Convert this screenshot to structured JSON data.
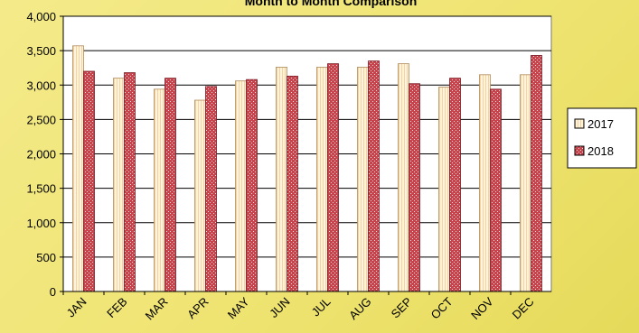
{
  "chart_data": {
    "type": "bar",
    "title": "Month to Month Comparison",
    "xlabel": "",
    "ylabel": "",
    "ylim": [
      0,
      4000
    ],
    "yticks": [
      "0",
      "500",
      "1,000",
      "1,500",
      "2,000",
      "2,500",
      "3,000",
      "3,500",
      "4,000"
    ],
    "yticks_values": [
      0,
      500,
      1000,
      1500,
      2000,
      2500,
      3000,
      3500,
      4000
    ],
    "grid": true,
    "legend_position": "right",
    "categories": [
      "JAN",
      "FEB",
      "MAR",
      "APR",
      "MAY",
      "JUN",
      "JUL",
      "AUG",
      "SEP",
      "OCT",
      "NOV",
      "DEC"
    ],
    "series": [
      {
        "name": "2017",
        "color": "#fff3dc",
        "stripe_color": "#f3d6a6",
        "values": [
          3570,
          3100,
          2940,
          2780,
          3060,
          3260,
          3260,
          3260,
          3310,
          2970,
          3150,
          3150
        ]
      },
      {
        "name": "2018",
        "color": "#c8444d",
        "pattern_color": "#f7d7d9",
        "values": [
          3200,
          3180,
          3100,
          2980,
          3080,
          3130,
          3310,
          3350,
          3020,
          3100,
          2940,
          3430
        ]
      }
    ]
  }
}
